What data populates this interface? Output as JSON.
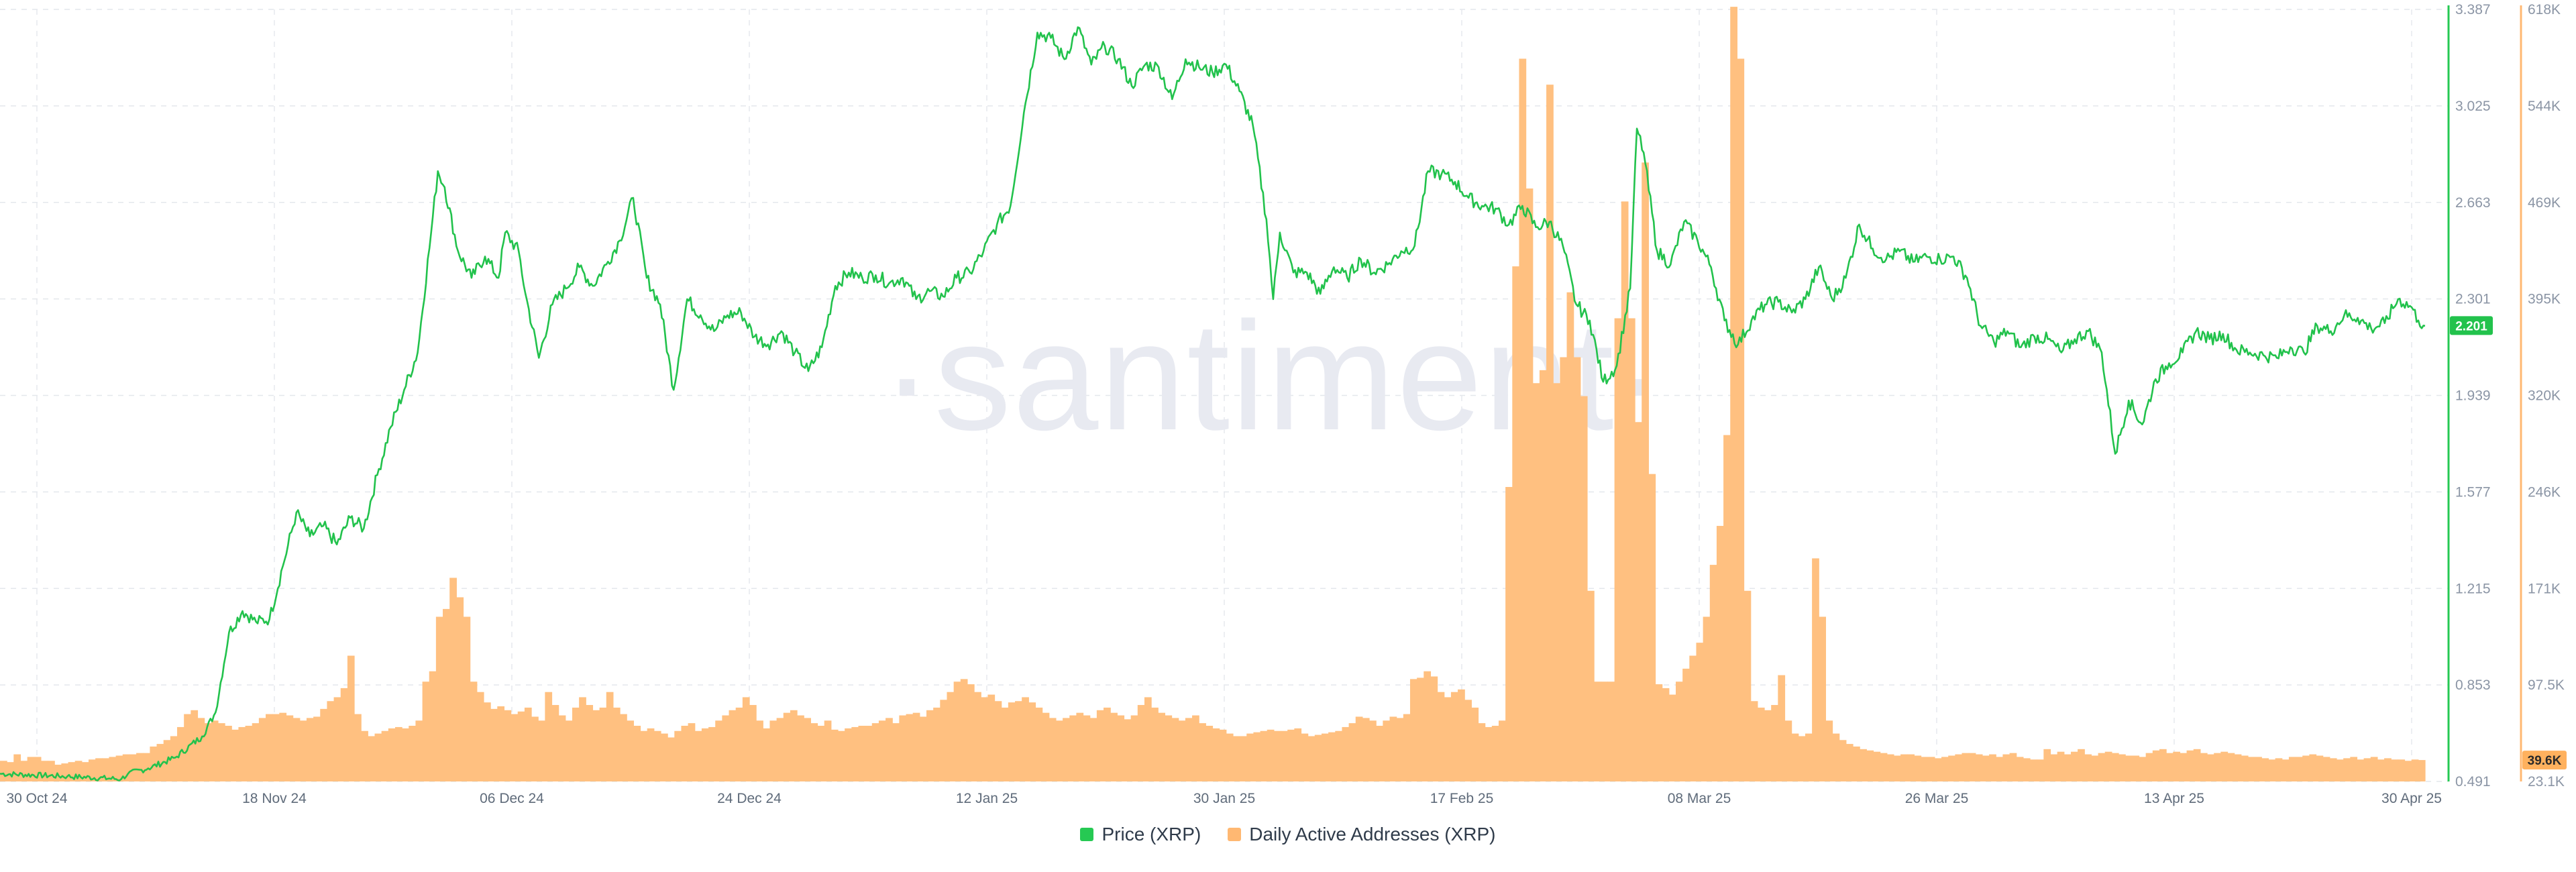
{
  "watermark": "·santiment·",
  "legend": [
    {
      "label": "Price (XRP)",
      "color": "#26c953"
    },
    {
      "label": "Daily Active Addresses (XRP)",
      "color": "#ffb872"
    }
  ],
  "chart_data": {
    "type": "bar+line",
    "x_ticks": [
      "30 Oct 24",
      "18 Nov 24",
      "06 Dec 24",
      "24 Dec 24",
      "12 Jan 25",
      "30 Jan 25",
      "17 Feb 25",
      "08 Mar 25",
      "26 Mar 25",
      "13 Apr 25",
      "30 Apr 25"
    ],
    "price_axis": {
      "ticks": [
        "3.387",
        "3.025",
        "2.663",
        "2.301",
        "1.939",
        "1.577",
        "1.215",
        "0.853",
        "0.491"
      ],
      "range": [
        0.491,
        3.387
      ],
      "current": "2.201",
      "color": "#26c953"
    },
    "daa_axis": {
      "ticks": [
        "618K",
        "544K",
        "469K",
        "395K",
        "320K",
        "246K",
        "171K",
        "97.5K",
        "23.1K"
      ],
      "range": [
        23100,
        618000
      ],
      "current": "39.6K",
      "color": "#ffb872"
    },
    "price_keypoints": [
      [
        0,
        0.52
      ],
      [
        10,
        0.51
      ],
      [
        18,
        0.5
      ],
      [
        19,
        0.52
      ],
      [
        22,
        0.54
      ],
      [
        26,
        0.58
      ],
      [
        30,
        0.66
      ],
      [
        32,
        0.75
      ],
      [
        34,
        1.05
      ],
      [
        36,
        1.13
      ],
      [
        38,
        1.09
      ],
      [
        40,
        1.1
      ],
      [
        42,
        1.3
      ],
      [
        44,
        1.5
      ],
      [
        46,
        1.41
      ],
      [
        48,
        1.45
      ],
      [
        50,
        1.38
      ],
      [
        52,
        1.48
      ],
      [
        54,
        1.44
      ],
      [
        56,
        1.64
      ],
      [
        58,
        1.82
      ],
      [
        60,
        1.96
      ],
      [
        62,
        2.1
      ],
      [
        64,
        2.55
      ],
      [
        65,
        2.78
      ],
      [
        66,
        2.72
      ],
      [
        68,
        2.48
      ],
      [
        70,
        2.38
      ],
      [
        72,
        2.46
      ],
      [
        74,
        2.38
      ],
      [
        75,
        2.55
      ],
      [
        77,
        2.48
      ],
      [
        78,
        2.32
      ],
      [
        80,
        2.08
      ],
      [
        82,
        2.28
      ],
      [
        84,
        2.34
      ],
      [
        86,
        2.42
      ],
      [
        88,
        2.35
      ],
      [
        90,
        2.43
      ],
      [
        92,
        2.52
      ],
      [
        94,
        2.68
      ],
      [
        96,
        2.38
      ],
      [
        98,
        2.28
      ],
      [
        100,
        1.96
      ],
      [
        102,
        2.3
      ],
      [
        104,
        2.24
      ],
      [
        106,
        2.18
      ],
      [
        108,
        2.24
      ],
      [
        110,
        2.25
      ],
      [
        112,
        2.16
      ],
      [
        114,
        2.13
      ],
      [
        116,
        2.18
      ],
      [
        118,
        2.1
      ],
      [
        120,
        2.03
      ],
      [
        122,
        2.12
      ],
      [
        124,
        2.35
      ],
      [
        126,
        2.4
      ],
      [
        128,
        2.38
      ],
      [
        130,
        2.39
      ],
      [
        132,
        2.36
      ],
      [
        134,
        2.38
      ],
      [
        136,
        2.3
      ],
      [
        138,
        2.33
      ],
      [
        140,
        2.31
      ],
      [
        142,
        2.38
      ],
      [
        144,
        2.4
      ],
      [
        146,
        2.48
      ],
      [
        148,
        2.58
      ],
      [
        150,
        2.65
      ],
      [
        152,
        3.0
      ],
      [
        154,
        3.3
      ],
      [
        156,
        3.28
      ],
      [
        158,
        3.2
      ],
      [
        160,
        3.32
      ],
      [
        162,
        3.18
      ],
      [
        164,
        3.25
      ],
      [
        166,
        3.2
      ],
      [
        168,
        3.1
      ],
      [
        170,
        3.18
      ],
      [
        172,
        3.17
      ],
      [
        174,
        3.05
      ],
      [
        176,
        3.2
      ],
      [
        178,
        3.17
      ],
      [
        180,
        3.15
      ],
      [
        182,
        3.18
      ],
      [
        184,
        3.08
      ],
      [
        186,
        2.95
      ],
      [
        188,
        2.6
      ],
      [
        189,
        2.3
      ],
      [
        190,
        2.55
      ],
      [
        192,
        2.4
      ],
      [
        194,
        2.4
      ],
      [
        196,
        2.32
      ],
      [
        198,
        2.42
      ],
      [
        200,
        2.38
      ],
      [
        202,
        2.45
      ],
      [
        204,
        2.4
      ],
      [
        206,
        2.43
      ],
      [
        208,
        2.48
      ],
      [
        210,
        2.5
      ],
      [
        212,
        2.78
      ],
      [
        214,
        2.77
      ],
      [
        216,
        2.74
      ],
      [
        218,
        2.68
      ],
      [
        220,
        2.65
      ],
      [
        222,
        2.64
      ],
      [
        224,
        2.58
      ],
      [
        226,
        2.65
      ],
      [
        228,
        2.57
      ],
      [
        230,
        2.59
      ],
      [
        232,
        2.5
      ],
      [
        234,
        2.28
      ],
      [
        236,
        2.22
      ],
      [
        238,
        1.99
      ],
      [
        240,
        2.05
      ],
      [
        242,
        2.34
      ],
      [
        243,
        2.94
      ],
      [
        244,
        2.85
      ],
      [
        246,
        2.48
      ],
      [
        248,
        2.43
      ],
      [
        250,
        2.59
      ],
      [
        252,
        2.52
      ],
      [
        254,
        2.42
      ],
      [
        256,
        2.22
      ],
      [
        258,
        2.13
      ],
      [
        260,
        2.22
      ],
      [
        262,
        2.28
      ],
      [
        264,
        2.29
      ],
      [
        266,
        2.25
      ],
      [
        268,
        2.3
      ],
      [
        270,
        2.42
      ],
      [
        272,
        2.3
      ],
      [
        274,
        2.38
      ],
      [
        276,
        2.58
      ],
      [
        278,
        2.49
      ],
      [
        280,
        2.45
      ],
      [
        282,
        2.48
      ],
      [
        284,
        2.44
      ],
      [
        286,
        2.46
      ],
      [
        288,
        2.45
      ],
      [
        290,
        2.46
      ],
      [
        292,
        2.38
      ],
      [
        294,
        2.2
      ],
      [
        296,
        2.14
      ],
      [
        298,
        2.18
      ],
      [
        300,
        2.12
      ],
      [
        302,
        2.16
      ],
      [
        304,
        2.15
      ],
      [
        306,
        2.1
      ],
      [
        308,
        2.15
      ],
      [
        310,
        2.18
      ],
      [
        312,
        2.1
      ],
      [
        314,
        1.72
      ],
      [
        316,
        1.92
      ],
      [
        318,
        1.83
      ],
      [
        320,
        2.0
      ],
      [
        322,
        2.06
      ],
      [
        324,
        2.1
      ],
      [
        326,
        2.18
      ],
      [
        328,
        2.15
      ],
      [
        330,
        2.17
      ],
      [
        332,
        2.11
      ],
      [
        334,
        2.1
      ],
      [
        336,
        2.09
      ],
      [
        338,
        2.08
      ],
      [
        340,
        2.12
      ],
      [
        342,
        2.1
      ],
      [
        344,
        2.2
      ],
      [
        346,
        2.18
      ],
      [
        348,
        2.24
      ],
      [
        350,
        2.23
      ],
      [
        352,
        2.19
      ],
      [
        354,
        2.21
      ],
      [
        356,
        2.3
      ],
      [
        358,
        2.27
      ],
      [
        359,
        2.22
      ],
      [
        360,
        2.2
      ]
    ],
    "price_final": 2.201,
    "daa_values": [
      39000,
      38000,
      44000,
      39000,
      42000,
      42000,
      39000,
      39000,
      36000,
      37000,
      38000,
      39000,
      38000,
      40000,
      41000,
      41000,
      42000,
      43000,
      44000,
      44000,
      45000,
      45000,
      50000,
      52000,
      55000,
      58000,
      65000,
      75000,
      78000,
      72000,
      68000,
      70000,
      68000,
      66000,
      63000,
      65000,
      66000,
      68000,
      72000,
      75000,
      75000,
      76000,
      74000,
      72000,
      70000,
      72000,
      73000,
      79000,
      85000,
      88000,
      95000,
      120000,
      75000,
      62000,
      58000,
      60000,
      62000,
      64000,
      65000,
      64000,
      66000,
      70000,
      100000,
      108000,
      150000,
      156000,
      180000,
      165000,
      150000,
      100000,
      92000,
      84000,
      79000,
      81000,
      78000,
      75000,
      77000,
      80000,
      73000,
      70000,
      92000,
      82000,
      74000,
      70000,
      80000,
      88000,
      82000,
      78000,
      80000,
      92000,
      80000,
      75000,
      70000,
      66000,
      62000,
      64000,
      62000,
      60000,
      57000,
      62000,
      66000,
      68000,
      62000,
      64000,
      65000,
      70000,
      74000,
      78000,
      80000,
      88000,
      82000,
      70000,
      64000,
      70000,
      72000,
      76000,
      78000,
      74000,
      72000,
      68000,
      66000,
      70000,
      63000,
      62000,
      64000,
      65000,
      66000,
      66000,
      68000,
      70000,
      72000,
      68000,
      74000,
      75000,
      76000,
      73000,
      78000,
      80000,
      86000,
      92000,
      100000,
      102000,
      98000,
      92000,
      88000,
      90000,
      85000,
      80000,
      84000,
      85000,
      88000,
      84000,
      80000,
      76000,
      72000,
      70000,
      72000,
      74000,
      76000,
      74000,
      72000,
      78000,
      80000,
      76000,
      74000,
      71000,
      74000,
      82000,
      88000,
      80000,
      76000,
      74000,
      72000,
      70000,
      72000,
      74000,
      68000,
      66000,
      64000,
      63000,
      60000,
      58000,
      58000,
      60000,
      61000,
      62000,
      63000,
      62000,
      62000,
      63000,
      64000,
      60000,
      58000,
      59000,
      60000,
      61000,
      62000,
      65000,
      68000,
      73000,
      72000,
      70000,
      66000,
      70000,
      73000,
      72000,
      75000,
      102000,
      103000,
      108000,
      104000,
      92000,
      88000,
      92000,
      94000,
      86000,
      80000,
      68000,
      65000,
      66000,
      70000,
      250000,
      420000,
      580000,
      480000,
      330000,
      340000,
      560000,
      330000,
      350000,
      400000,
      350000,
      320000,
      170000,
      100000,
      100000,
      100000,
      380000,
      470000,
      380000,
      300000,
      500000,
      260000,
      98000,
      95000,
      90000,
      100000,
      110000,
      120000,
      130000,
      150000,
      190000,
      220000,
      290000,
      620000,
      580000,
      170000,
      85000,
      80000,
      78000,
      82000,
      105000,
      70000,
      60000,
      58000,
      60000,
      195000,
      150000,
      70000,
      60000,
      55000,
      52000,
      50000,
      48000,
      47000,
      46000,
      45000,
      44000,
      43000,
      44000,
      44000,
      43000,
      42000,
      42000,
      41000,
      42000,
      43000,
      44000,
      45000,
      45000,
      44000,
      43000,
      44000,
      42000,
      44000,
      45000,
      42000,
      41000,
      40000,
      40000,
      48000,
      44000,
      46000,
      44000,
      46000,
      48000,
      44000,
      43000,
      45000,
      46000,
      45000,
      44000,
      43000,
      43000,
      42000,
      45000,
      47000,
      48000,
      45000,
      46000,
      45000,
      47000,
      48000,
      45000,
      44000,
      45000,
      46000,
      45000,
      44000,
      43000,
      42000,
      42000,
      41000,
      40000,
      41000,
      40000,
      42000,
      42000,
      43000,
      44000,
      43000,
      42000,
      41000,
      40000,
      41000,
      42000,
      40000,
      41000,
      42000,
      40000,
      41000,
      40000,
      40000,
      39000,
      40000,
      39600
    ]
  }
}
